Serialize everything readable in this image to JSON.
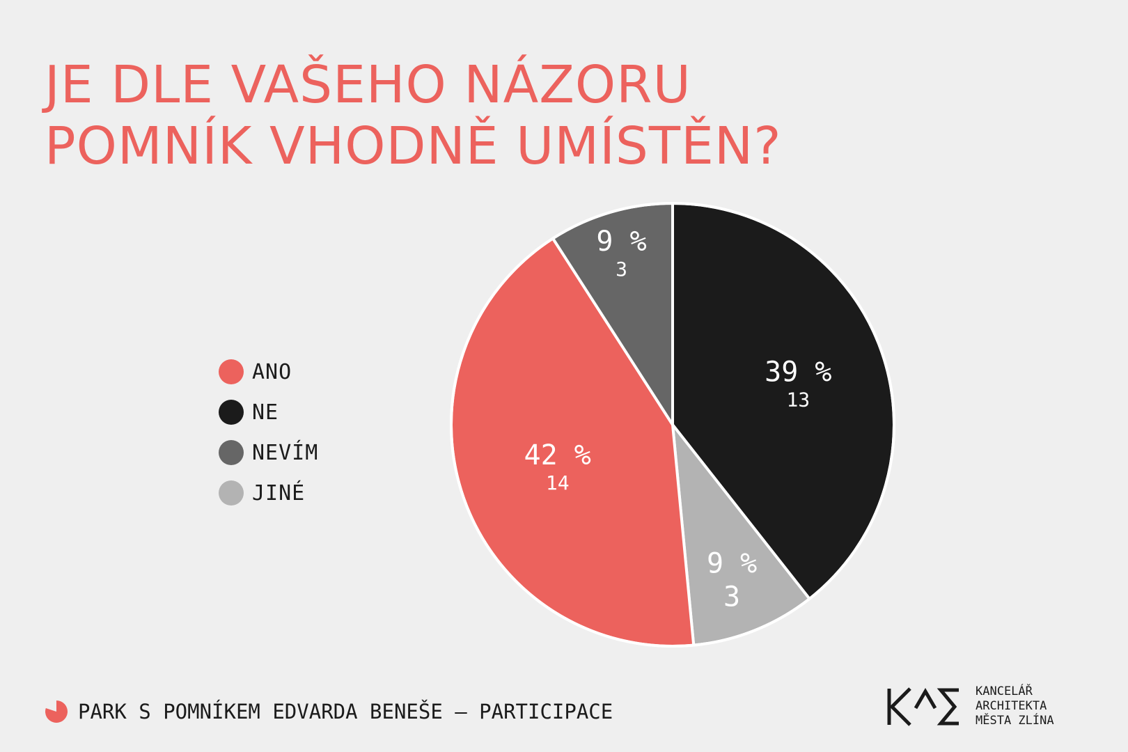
{
  "title": {
    "line1": "JE DLE VAŠEHO NÁZORU",
    "line2": "POMNÍK VHODNĚ UMÍSTĚN?"
  },
  "chart_data": {
    "type": "pie",
    "title": "JE DLE VAŠEHO NÁZORU POMNÍK VHODNĚ UMÍSTĚN?",
    "slices": [
      {
        "label": "NE",
        "percent_label": "39 %",
        "count": 13,
        "color": "#1b1b1b"
      },
      {
        "label": "JINÉ",
        "percent_label": "9 %",
        "count": 3,
        "color": "#b3b3b3"
      },
      {
        "label": "ANO",
        "percent_label": "42 %",
        "count": 14,
        "color": "#ec625d"
      },
      {
        "label": "NEVÍM",
        "percent_label": "9 %",
        "count": 3,
        "color": "#666666"
      }
    ],
    "legend_position": "left"
  },
  "legend": [
    {
      "label": "ANO",
      "color": "#ec625d"
    },
    {
      "label": "NE",
      "color": "#1b1b1b"
    },
    {
      "label": "NEVÍM",
      "color": "#666666"
    },
    {
      "label": "JINÉ",
      "color": "#b3b3b3"
    }
  ],
  "footer": {
    "text": "PARK S POMNÍKEM EDVARDA BENEŠE – PARTICIPACE",
    "icon": "pie-icon"
  },
  "logo": {
    "mark": "KAM",
    "lines": [
      "KANCELÁŘ",
      "ARCHITEKTA",
      "MĚSTA ZLÍNA"
    ]
  }
}
